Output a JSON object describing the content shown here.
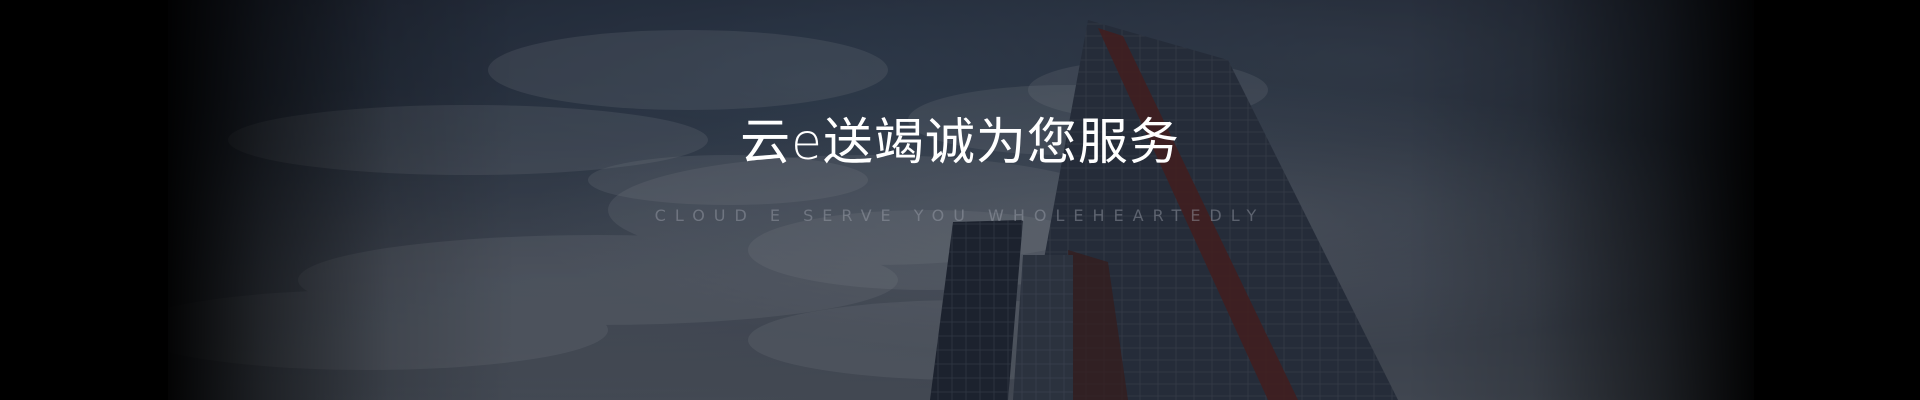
{
  "banner": {
    "title": "云e送竭诚为您服务",
    "subtitle": "CLOUD E SERVE YOU WHOLEHEARTEDLY"
  },
  "colors": {
    "background": "#000000",
    "title_text": "#ffffff",
    "subtitle_text": "#8c919b"
  },
  "image": {
    "subject": "sky-and-skyscrapers-photo"
  }
}
